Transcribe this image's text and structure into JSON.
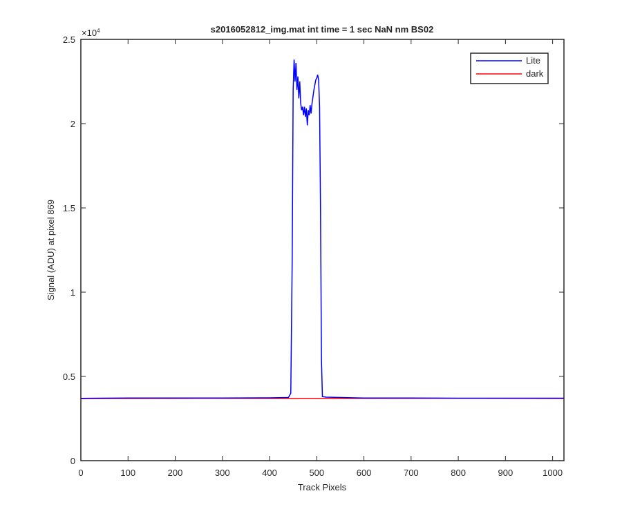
{
  "chart_data": {
    "type": "line",
    "title": "s2016052812_img.mat int time = 1 sec  NaN nm BS02",
    "x_label": "Track Pixels",
    "y_label": "Signal (ADU) at pixel 869",
    "y_multiplier": {
      "base": "×10",
      "exponent": "4"
    },
    "xlim": [
      0,
      1024
    ],
    "xticks": [
      0,
      100,
      200,
      300,
      400,
      500,
      600,
      700,
      800,
      900,
      1000
    ],
    "ylim": [
      0,
      2.5
    ],
    "yticks": [
      0,
      0.5,
      1,
      1.5,
      2,
      2.5
    ],
    "legend": "northeast",
    "box": true,
    "series": [
      {
        "name": "Lite",
        "color": "#0000ff",
        "x": [
          0,
          100,
          200,
          300,
          400,
          440,
          445,
          448,
          450,
          452,
          454,
          456,
          458,
          460,
          462,
          464,
          466,
          468,
          470,
          472,
          474,
          476,
          478,
          480,
          482,
          484,
          486,
          488,
          490,
          492,
          494,
          496,
          498,
          500,
          502,
          504,
          506,
          508,
          510,
          512,
          520,
          600,
          700,
          800,
          900,
          1024
        ],
        "values": [
          0.37,
          0.372,
          0.372,
          0.372,
          0.373,
          0.375,
          0.4,
          1.2,
          2.2,
          2.38,
          2.25,
          2.36,
          2.2,
          2.28,
          2.15,
          2.25,
          2.12,
          2.08,
          2.1,
          2.05,
          2.1,
          2.04,
          2.09,
          1.99,
          2.08,
          2.05,
          2.11,
          2.06,
          2.12,
          2.16,
          2.2,
          2.23,
          2.26,
          2.27,
          2.29,
          2.26,
          2.1,
          1.5,
          0.6,
          0.38,
          0.377,
          0.372,
          0.372,
          0.371,
          0.371,
          0.371
        ]
      },
      {
        "name": "dark",
        "color": "#ff0000",
        "x": [
          0,
          256,
          512,
          768,
          1024
        ],
        "values": [
          0.368,
          0.37,
          0.369,
          0.37,
          0.369
        ]
      }
    ]
  }
}
